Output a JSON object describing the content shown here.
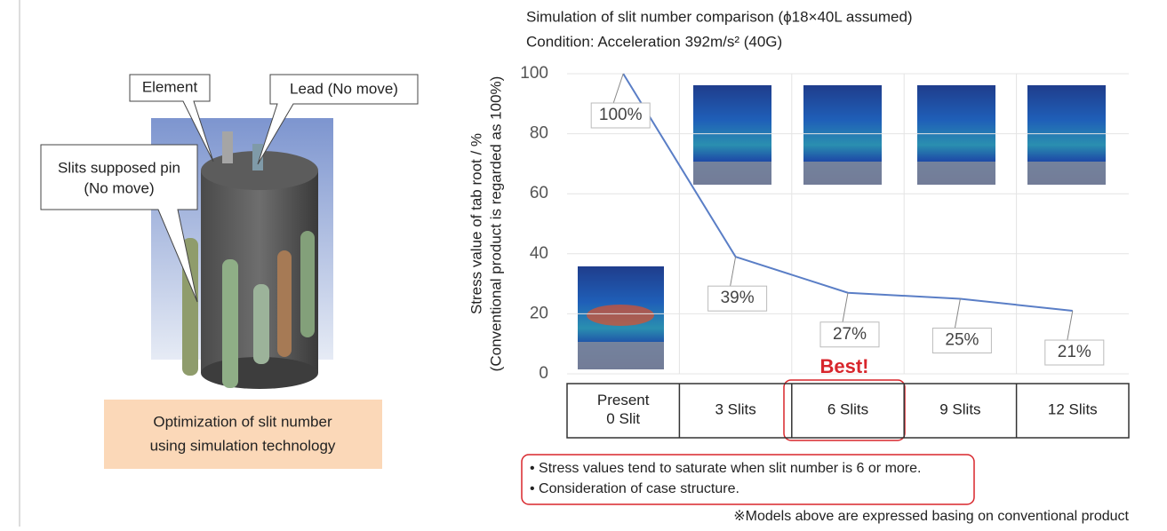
{
  "diagram": {
    "callouts": {
      "element": "Element",
      "lead": "Lead (No move)",
      "pin": [
        "Slits supposed pin",
        "(No move)"
      ]
    },
    "caption": [
      "Optimization of slit number",
      "using simulation technology"
    ]
  },
  "chart_data": {
    "type": "line",
    "title": "Simulation of slit number comparison (ϕ18×40L assumed)",
    "subtitle": "Condition: Acceleration 392m/s² (40G)",
    "y_label": [
      "Stress value of tab root / %",
      "(Conventional product is regarded as 100%)"
    ],
    "categories": [
      [
        "Present",
        "0 Slit"
      ],
      [
        "3 Slits"
      ],
      [
        "6 Slits"
      ],
      [
        "9 Slits"
      ],
      [
        "12 Slits"
      ]
    ],
    "values": [
      100,
      39,
      27,
      25,
      21
    ],
    "value_labels": [
      "100%",
      "39%",
      "27%",
      "25%",
      "21%"
    ],
    "color": "#5a7ec6",
    "ylim": [
      0,
      100
    ],
    "yticks": [
      0,
      20,
      40,
      60,
      80,
      100
    ],
    "grid": true,
    "highlight": "Best!",
    "notes": [
      "• Stress values tend to saturate when slit number is 6 or more.",
      "• Consideration of case structure."
    ],
    "footnote": "※Models above are expressed basing on conventional product"
  }
}
